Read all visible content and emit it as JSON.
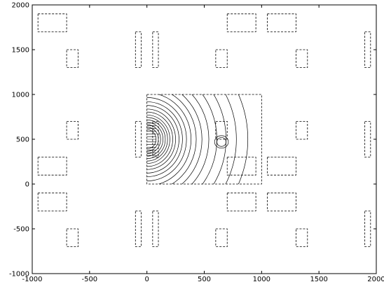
{
  "chart_data": {
    "type": "contour",
    "xlim": [
      -1000,
      2000
    ],
    "ylim": [
      -1000,
      2000
    ],
    "x_ticks": [
      -1000,
      -500,
      0,
      500,
      1000,
      1500,
      2000
    ],
    "y_ticks": [
      -1000,
      -500,
      0,
      500,
      1000,
      1500,
      2000
    ],
    "x_tick_labels": [
      "-1000",
      "-500",
      "0",
      "500",
      "1000",
      "1500",
      "2000"
    ],
    "y_tick_labels": [
      "-1000",
      "-500",
      "0",
      "500",
      "1000",
      "1500",
      "2000"
    ],
    "grid": false,
    "domain_box": {
      "x0": 0,
      "x1": 1000,
      "y0": 0,
      "y1": 1000
    },
    "dashed_rectangles": [
      {
        "x0": -950,
        "x1": -700,
        "y0": 1700,
        "y1": 1900
      },
      {
        "x0": -700,
        "x1": -600,
        "y0": 1300,
        "y1": 1500
      },
      {
        "x0": -100,
        "x1": -50,
        "y0": 1300,
        "y1": 1700
      },
      {
        "x0": 50,
        "x1": 100,
        "y0": 1300,
        "y1": 1700
      },
      {
        "x0": 600,
        "x1": 700,
        "y0": 1300,
        "y1": 1500
      },
      {
        "x0": 700,
        "x1": 950,
        "y0": 1700,
        "y1": 1900
      },
      {
        "x0": 1050,
        "x1": 1300,
        "y0": 1700,
        "y1": 1900
      },
      {
        "x0": 1300,
        "x1": 1400,
        "y0": 1300,
        "y1": 1500
      },
      {
        "x0": 1900,
        "x1": 1950,
        "y0": 1300,
        "y1": 1700
      },
      {
        "x0": -700,
        "x1": -600,
        "y0": 500,
        "y1": 700
      },
      {
        "x0": -100,
        "x1": -50,
        "y0": 300,
        "y1": 700
      },
      {
        "x0": 50,
        "x1": 100,
        "y0": 300,
        "y1": 700
      },
      {
        "x0": 600,
        "x1": 700,
        "y0": 500,
        "y1": 700
      },
      {
        "x0": 1300,
        "x1": 1400,
        "y0": 500,
        "y1": 700
      },
      {
        "x0": 1900,
        "x1": 1950,
        "y0": 300,
        "y1": 700
      },
      {
        "x0": -950,
        "x1": -700,
        "y0": 100,
        "y1": 300
      },
      {
        "x0": 700,
        "x1": 950,
        "y0": 100,
        "y1": 300
      },
      {
        "x0": 1050,
        "x1": 1300,
        "y0": 100,
        "y1": 300
      },
      {
        "x0": -950,
        "x1": -700,
        "y0": -300,
        "y1": -100
      },
      {
        "x0": 700,
        "x1": 950,
        "y0": -300,
        "y1": -100
      },
      {
        "x0": 1050,
        "x1": 1300,
        "y0": -300,
        "y1": -100
      },
      {
        "x0": -700,
        "x1": -600,
        "y0": -700,
        "y1": -500
      },
      {
        "x0": -100,
        "x1": -50,
        "y0": -700,
        "y1": -300
      },
      {
        "x0": 50,
        "x1": 100,
        "y0": -700,
        "y1": -300
      },
      {
        "x0": 600,
        "x1": 700,
        "y0": -700,
        "y1": -500
      },
      {
        "x0": 1300,
        "x1": 1400,
        "y0": -700,
        "y1": -500
      },
      {
        "x0": 1900,
        "x1": 1950,
        "y0": -700,
        "y1": -300
      }
    ],
    "contour_source_center": [
      0,
      500
    ],
    "contour_radii_x": [
      80,
      100,
      120,
      140,
      160,
      180,
      200,
      225,
      250,
      280,
      310,
      345,
      385,
      430,
      480,
      540,
      610,
      690,
      780,
      880
    ],
    "contour_aspect": 1.35,
    "secondary_contour_center": [
      650,
      470
    ],
    "secondary_contour_radii": [
      [
        40,
        50
      ],
      [
        60,
        70
      ]
    ],
    "colors": {
      "line": "#000000",
      "background": "#ffffff"
    }
  }
}
